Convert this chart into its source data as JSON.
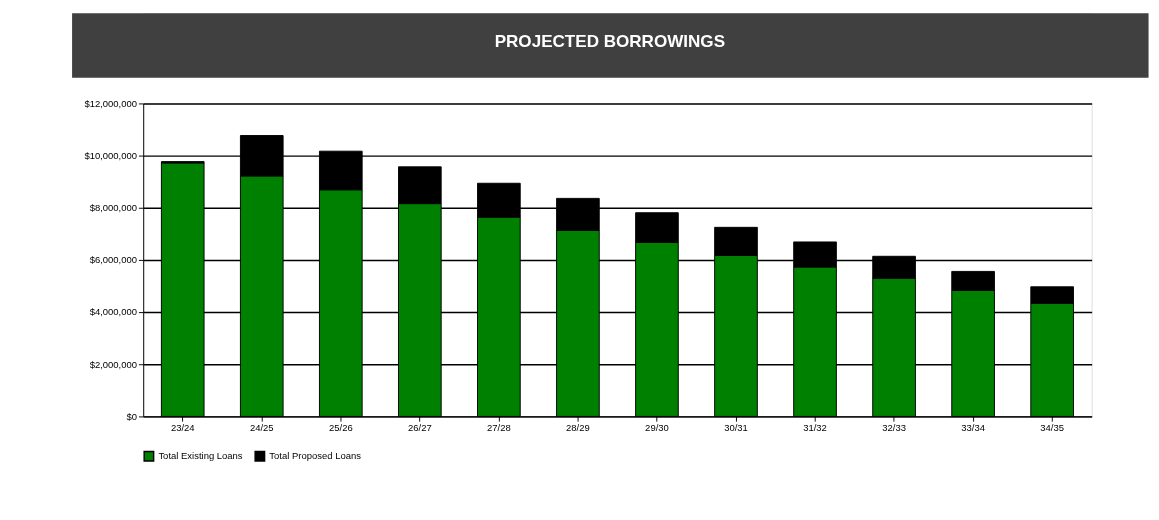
{
  "chart_data": {
    "type": "bar",
    "title": "PROJECTED BORROWINGS",
    "stacked": true,
    "categories": [
      "23/24",
      "24/25",
      "25/26",
      "26/27",
      "27/28",
      "28/29",
      "29/30",
      "30/31",
      "31/32",
      "32/33",
      "33/34",
      "34/35"
    ],
    "series": [
      {
        "name": "Total Existing Loans",
        "color": "#008000",
        "values": [
          9720000,
          9220000,
          8690000,
          8160000,
          7640000,
          7130000,
          6670000,
          6170000,
          5730000,
          5300000,
          4830000,
          4340000
        ]
      },
      {
        "name": "Total Proposed Loans",
        "color": "#000000",
        "values": [
          50000,
          1550000,
          1480000,
          1410000,
          1300000,
          1230000,
          1140000,
          1080000,
          960000,
          840000,
          730000,
          630000
        ]
      }
    ],
    "ylim": [
      0,
      12000000
    ],
    "yticks": [
      {
        "value": 0,
        "label": "$0"
      },
      {
        "value": 2000000,
        "label": "$2,000,000"
      },
      {
        "value": 4000000,
        "label": "$4,000,000"
      },
      {
        "value": 6000000,
        "label": "$6,000,000"
      },
      {
        "value": 8000000,
        "label": "$8,000,000"
      },
      {
        "value": 10000000,
        "label": "$10,000,000"
      },
      {
        "value": 12000000,
        "label": "$12,000,000"
      }
    ],
    "grid": "y",
    "legend": "bottom"
  }
}
